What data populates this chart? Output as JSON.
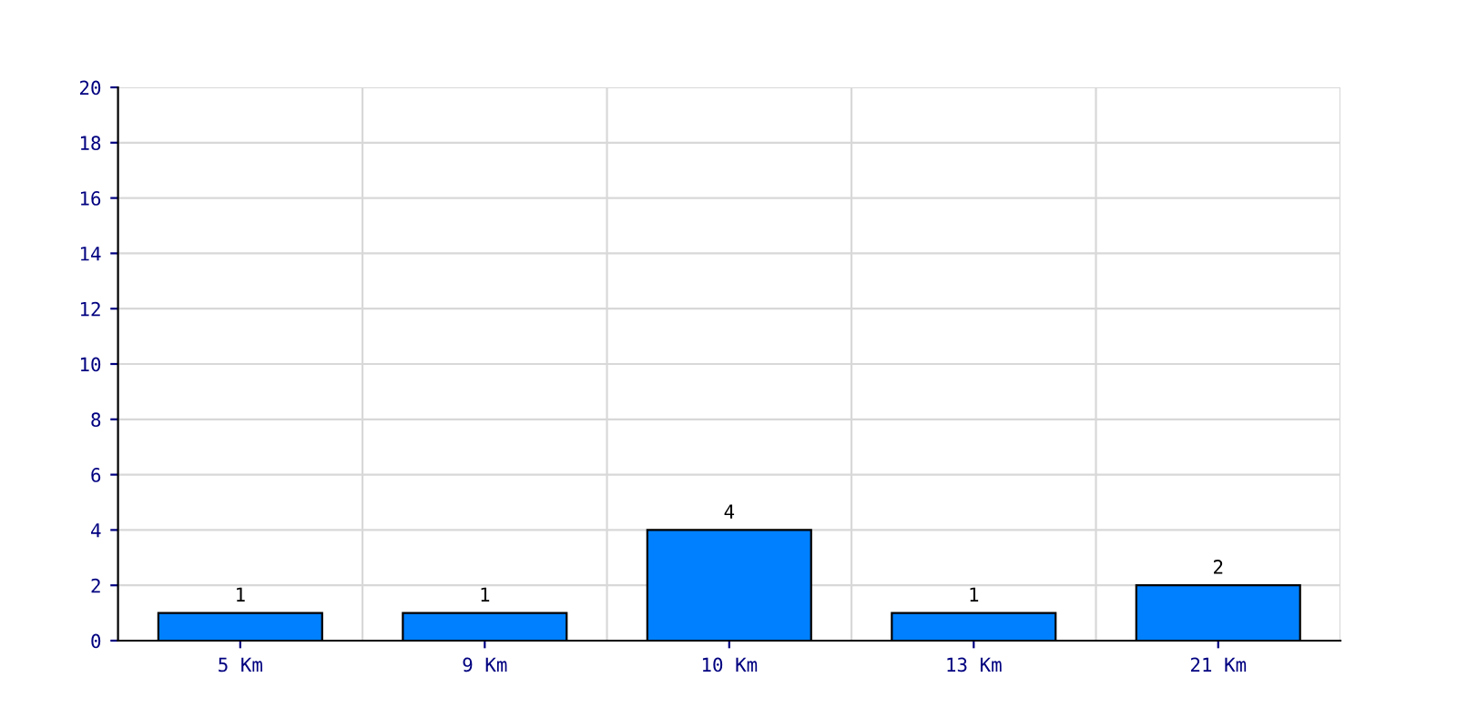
{
  "chart_data": {
    "type": "bar",
    "categories": [
      "5 Km",
      "9 Km",
      "10 Km",
      "13 Km",
      "21 Km"
    ],
    "values": [
      1,
      1,
      4,
      1,
      2
    ],
    "color": "#0080ff",
    "ylim": [
      0,
      20
    ],
    "yticks": [
      0,
      2,
      4,
      6,
      8,
      10,
      12,
      14,
      16,
      18,
      20
    ],
    "grid": true,
    "data_labels": true
  }
}
